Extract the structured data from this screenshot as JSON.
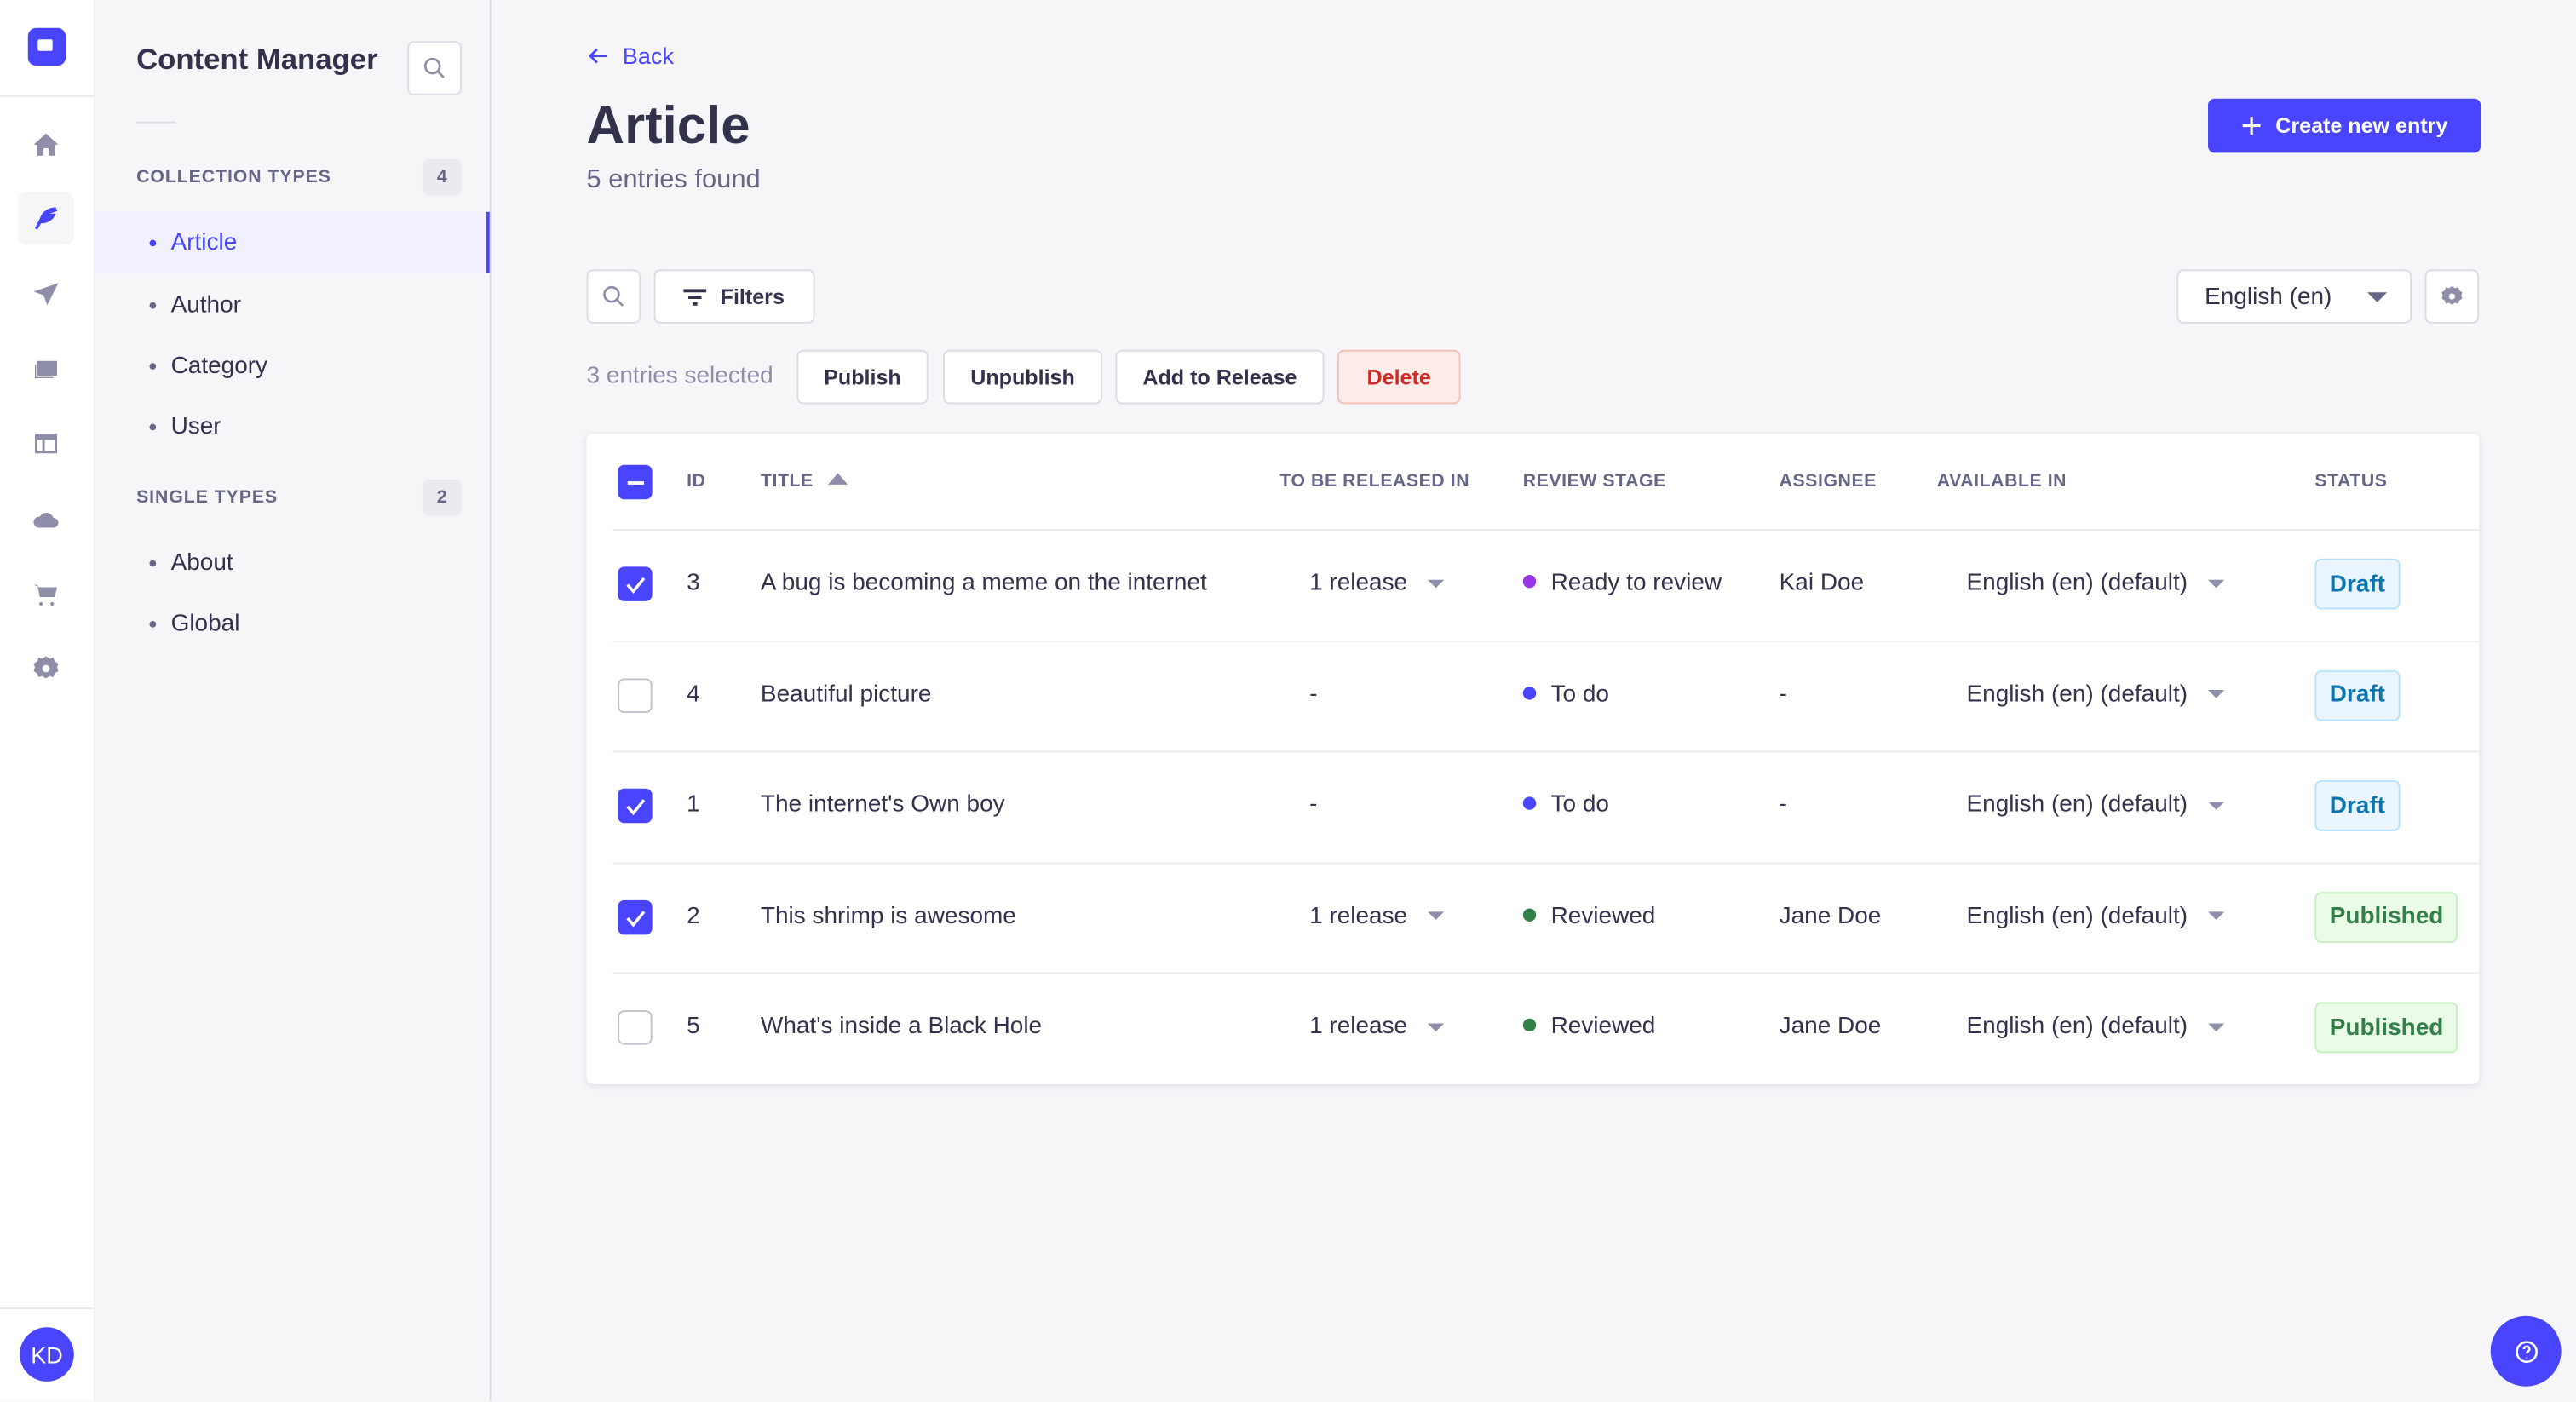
{
  "nav": {
    "avatar_initials": "KD",
    "icons": [
      "home-icon",
      "feather-icon",
      "paper-plane-icon",
      "images-icon",
      "layout-icon",
      "cloud-icon",
      "cart-icon",
      "gear-icon"
    ],
    "active": "feather-icon"
  },
  "sidebar": {
    "title": "Content Manager",
    "collection_types": {
      "label": "COLLECTION TYPES",
      "count": "4",
      "items": [
        "Article",
        "Author",
        "Category",
        "User"
      ],
      "active": "Article"
    },
    "single_types": {
      "label": "SINGLE TYPES",
      "count": "2",
      "items": [
        "About",
        "Global"
      ]
    }
  },
  "header": {
    "back": "Back",
    "title": "Article",
    "subtitle": "5 entries found",
    "create": "Create new entry"
  },
  "toolbar": {
    "filters": "Filters",
    "locale": "English (en)"
  },
  "bulk": {
    "selected": "3 entries selected",
    "publish": "Publish",
    "unpublish": "Unpublish",
    "add_to_release": "Add to Release",
    "delete": "Delete"
  },
  "table": {
    "headers": {
      "id": "ID",
      "title": "TITLE",
      "release": "TO BE RELEASED IN",
      "review": "REVIEW STAGE",
      "assignee": "ASSIGNEE",
      "available": "AVAILABLE IN",
      "status": "STATUS"
    },
    "sort": {
      "column": "TITLE",
      "direction": "ascending"
    },
    "rows": [
      {
        "checked": true,
        "id": "3",
        "title": "A bug is becoming a meme on the internet",
        "release": "1 release",
        "review": "Ready to review",
        "review_color": "#9736e8",
        "assignee": "Kai Doe",
        "available": "English (en) (default)",
        "status": "Draft"
      },
      {
        "checked": false,
        "id": "4",
        "title": "Beautiful picture",
        "release": "-",
        "review": "To do",
        "review_color": "#4945ff",
        "assignee": "-",
        "available": "English (en) (default)",
        "status": "Draft"
      },
      {
        "checked": true,
        "id": "1",
        "title": "The internet's Own boy",
        "release": "-",
        "review": "To do",
        "review_color": "#4945ff",
        "assignee": "-",
        "available": "English (en) (default)",
        "status": "Draft"
      },
      {
        "checked": true,
        "id": "2",
        "title": "This shrimp is awesome",
        "release": "1 release",
        "review": "Reviewed",
        "review_color": "#328048",
        "assignee": "Jane Doe",
        "available": "English (en) (default)",
        "status": "Published"
      },
      {
        "checked": false,
        "id": "5",
        "title": "What's inside a Black Hole",
        "release": "1 release",
        "review": "Reviewed",
        "review_color": "#328048",
        "assignee": "Jane Doe",
        "available": "English (en) (default)",
        "status": "Published"
      }
    ]
  },
  "colors": {
    "primary": "#4945ff",
    "draft": "#0c75af",
    "published": "#328048",
    "danger": "#d02b20"
  }
}
